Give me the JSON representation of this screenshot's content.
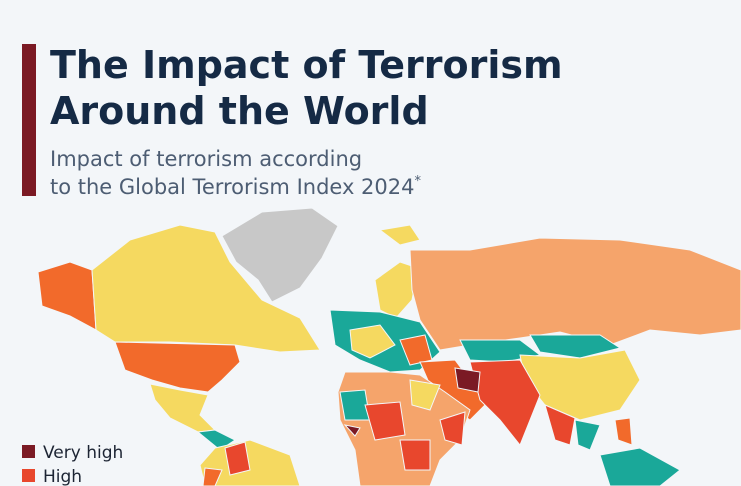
{
  "header": {
    "title_lines": [
      "The Impact of Terrorism",
      "Around the World"
    ],
    "subtitle_lines": [
      "Impact of terrorism according",
      "to the Global Terrorism Index 2024"
    ],
    "footnote_mark": "*"
  },
  "legend": [
    {
      "label": "Very high",
      "color": "#7b1a24"
    },
    {
      "label": "High",
      "color": "#e8472d"
    }
  ]
}
